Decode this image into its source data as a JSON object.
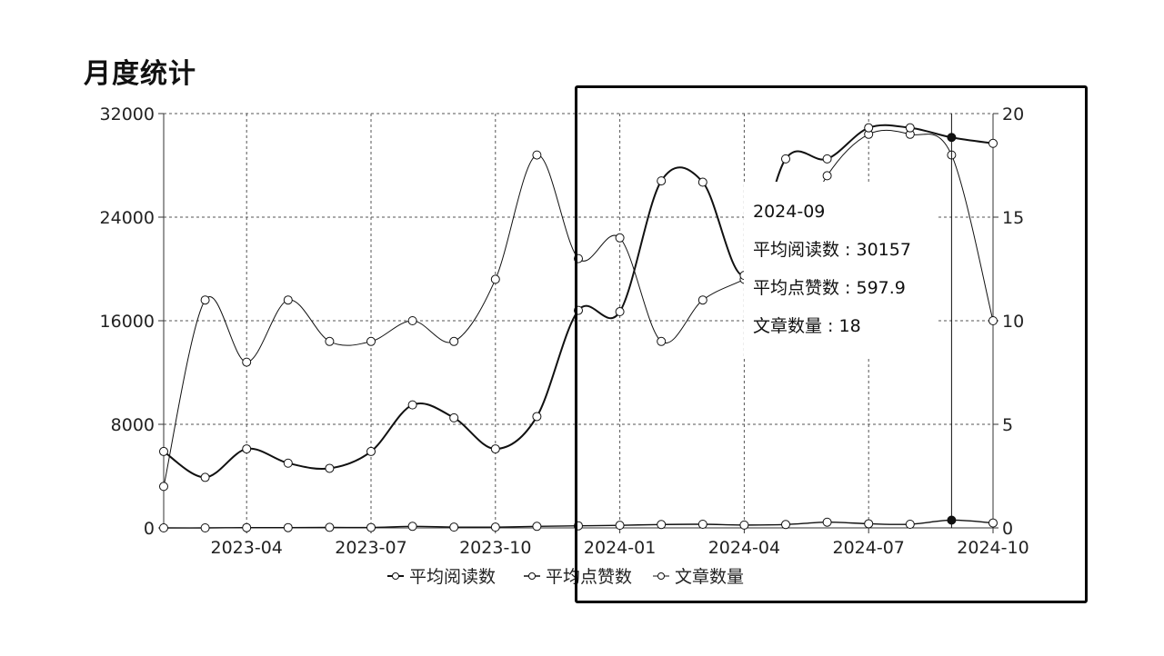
{
  "page": {
    "title": "月度统计"
  },
  "chart_data": {
    "type": "line",
    "x": [
      "2023-02",
      "2023-03",
      "2023-04",
      "2023-05",
      "2023-06",
      "2023-07",
      "2023-08",
      "2023-09",
      "2023-10",
      "2023-11",
      "2023-12",
      "2024-01",
      "2024-02",
      "2024-03",
      "2024-04",
      "2024-05",
      "2024-06",
      "2024-07",
      "2024-08",
      "2024-09",
      "2024-10"
    ],
    "x_tick_labels": [
      "2023-04",
      "2023-07",
      "2023-10",
      "2024-01",
      "2024-04",
      "2024-07",
      "2024-10"
    ],
    "y_left": {
      "ticks": [
        "0",
        "8000",
        "16000",
        "24000",
        "32000"
      ],
      "ylim": [
        0,
        32000
      ]
    },
    "y_right": {
      "ticks": [
        "0",
        "5",
        "10",
        "15",
        "20"
      ],
      "ylim": [
        0,
        20
      ]
    },
    "series": [
      {
        "name": "平均阅读数",
        "axis": "left",
        "style": "bold",
        "values": [
          5900,
          3900,
          6100,
          5000,
          4600,
          5900,
          9500,
          8500,
          6100,
          8600,
          16800,
          16700,
          26800,
          26700,
          19500,
          28500,
          28500,
          30900,
          30900,
          30157,
          29700
        ]
      },
      {
        "name": "平均点赞数",
        "axis": "left",
        "style": "normal",
        "values": [
          0,
          0,
          20,
          20,
          40,
          30,
          120,
          60,
          60,
          120,
          160,
          200,
          260,
          280,
          220,
          260,
          440,
          320,
          280,
          597.9,
          380
        ]
      },
      {
        "name": "文章数量",
        "axis": "right",
        "style": "thin",
        "values": [
          2,
          11,
          8,
          11,
          9,
          9,
          10,
          9,
          12,
          18,
          13,
          14,
          9,
          11,
          12,
          13,
          17,
          19,
          19,
          18,
          10
        ]
      }
    ],
    "tooltip": {
      "date": "2024-09",
      "rows": [
        {
          "label": "平均阅读数",
          "value": "30157"
        },
        {
          "label": "平均点赞数",
          "value": "597.9"
        },
        {
          "label": "文章数量",
          "value": "18"
        }
      ],
      "separator": " : "
    },
    "highlight_index": 19,
    "legend": [
      {
        "name": "平均阅读数"
      },
      {
        "name": "平均点赞数"
      },
      {
        "name": "文章数量"
      }
    ],
    "grid": true,
    "legend_position": "bottom-center"
  }
}
